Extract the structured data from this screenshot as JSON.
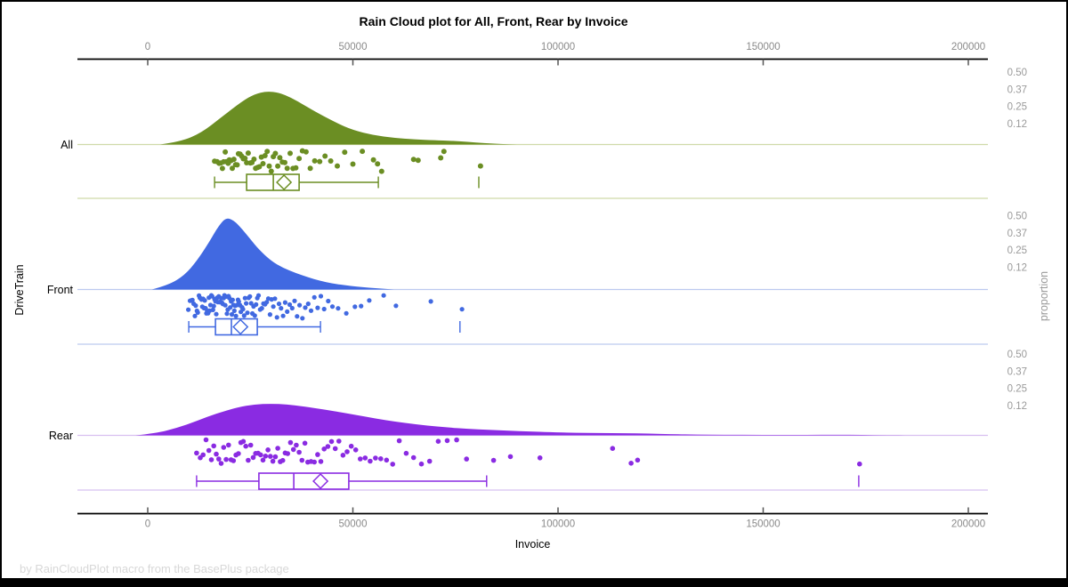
{
  "chart_data": {
    "type": "raincloud (half-violin density + jitter strip + box plot)",
    "title": "Rain Cloud plot for All, Front, Rear by Invoice",
    "xlabel": "Invoice",
    "ylabel": "DriveTrain",
    "y2label": "proportion",
    "footer": "by RainCloudPlot macro from the BasePlus package",
    "xlim": [
      0,
      204500
    ],
    "x_tick_values": [
      0,
      50000,
      100000,
      150000,
      200000
    ],
    "x_tick_labels": [
      "0",
      "50000",
      "100000",
      "150000",
      "200000"
    ],
    "proportion_tick_values": [
      0.5,
      0.37,
      0.25,
      0.12
    ],
    "proportion_tick_labels": [
      "0.50",
      "0.37",
      "0.25",
      "0.12"
    ],
    "categories": [
      "All",
      "Front",
      "Rear"
    ],
    "legend": "none",
    "grid": "off",
    "colors": {
      "axis_line": "#000000",
      "tick_mark": "#555555",
      "tick_label": "#8a8a8a",
      "proportion_label": "#9a9a9a",
      "category_label": "#000000",
      "footer": "#d8d8d8",
      "frame": "#000000"
    },
    "groups": [
      {
        "name": "All",
        "color": "#6B8E23",
        "light_color": "#cfdaa9",
        "density_peak_proportion": 0.37,
        "density_profile": [
          [
            3000,
            0
          ],
          [
            8000,
            0.02
          ],
          [
            13000,
            0.08
          ],
          [
            18000,
            0.19
          ],
          [
            23000,
            0.3
          ],
          [
            26000,
            0.35
          ],
          [
            29000,
            0.37
          ],
          [
            32000,
            0.36
          ],
          [
            35000,
            0.325
          ],
          [
            38000,
            0.275
          ],
          [
            42000,
            0.21
          ],
          [
            46000,
            0.15
          ],
          [
            50000,
            0.1
          ],
          [
            55000,
            0.065
          ],
          [
            60000,
            0.046
          ],
          [
            65000,
            0.036
          ],
          [
            70000,
            0.03
          ],
          [
            74000,
            0.026
          ],
          [
            78000,
            0.018
          ],
          [
            82000,
            0.01
          ],
          [
            86000,
            0.004
          ],
          [
            90000,
            0
          ]
        ],
        "box": {
          "whisker_low": 16300,
          "q1": 24100,
          "median": 30600,
          "q3": 36900,
          "whisker_high": 56200,
          "mean": 33200,
          "outliers": [
            80700
          ]
        },
        "points": [
          16300,
          16900,
          17400,
          17800,
          18200,
          18500,
          18900,
          19200,
          19600,
          19900,
          20300,
          20600,
          21000,
          21400,
          21800,
          22100,
          22500,
          22900,
          23300,
          23700,
          24100,
          24500,
          25000,
          25400,
          25900,
          26300,
          26800,
          27200,
          27700,
          28100,
          28600,
          29100,
          29600,
          30100,
          30600,
          31100,
          31700,
          32200,
          32800,
          33400,
          34000,
          34700,
          35400,
          36100,
          36900,
          37700,
          38600,
          39600,
          40700,
          41900,
          43200,
          44600,
          46200,
          48000,
          50000,
          52300,
          55000,
          56000,
          57000,
          64800,
          65900,
          71400,
          72200,
          81100
        ]
      },
      {
        "name": "Front",
        "color": "#4169E1",
        "light_color": "#bcc9ef",
        "density_peak_proportion": 0.5,
        "density_profile": [
          [
            1000,
            0
          ],
          [
            5000,
            0.03
          ],
          [
            9000,
            0.1
          ],
          [
            12000,
            0.2
          ],
          [
            15000,
            0.33
          ],
          [
            17000,
            0.43
          ],
          [
            19000,
            0.5
          ],
          [
            21000,
            0.48
          ],
          [
            23000,
            0.42
          ],
          [
            25000,
            0.35
          ],
          [
            27000,
            0.28
          ],
          [
            30000,
            0.2
          ],
          [
            33000,
            0.15
          ],
          [
            36000,
            0.115
          ],
          [
            39000,
            0.085
          ],
          [
            42000,
            0.06
          ],
          [
            45000,
            0.042
          ],
          [
            48000,
            0.03
          ],
          [
            51000,
            0.02
          ],
          [
            54000,
            0.012
          ],
          [
            57000,
            0.006
          ],
          [
            60000,
            0
          ]
        ],
        "box": {
          "whisker_low": 10000,
          "q1": 16500,
          "median": 20400,
          "q3": 26700,
          "whisker_high": 42100,
          "mean": 22600,
          "outliers": [
            76100
          ]
        },
        "points": [
          9900,
          10300,
          10600,
          10900,
          11200,
          11500,
          11700,
          12000,
          12200,
          12500,
          12700,
          12900,
          13100,
          13300,
          13500,
          13700,
          13900,
          14100,
          14300,
          14500,
          14700,
          14900,
          15100,
          15300,
          15500,
          15700,
          15900,
          16100,
          16300,
          16500,
          16700,
          16900,
          17100,
          17300,
          17500,
          17700,
          17900,
          18100,
          18300,
          18500,
          18700,
          18900,
          19100,
          19300,
          19500,
          19700,
          19900,
          20100,
          20300,
          20500,
          20700,
          20900,
          21100,
          21300,
          21500,
          21800,
          22000,
          22200,
          22500,
          22700,
          23000,
          23200,
          23500,
          23700,
          24000,
          24300,
          24600,
          24900,
          25200,
          25500,
          25800,
          26100,
          26400,
          26700,
          27000,
          27400,
          27800,
          28200,
          28600,
          29000,
          29400,
          29800,
          30200,
          30600,
          31000,
          31500,
          32000,
          32500,
          33000,
          33500,
          34000,
          34600,
          35200,
          35800,
          36400,
          37000,
          37700,
          38400,
          39100,
          39800,
          40600,
          41400,
          42200,
          43000,
          44000,
          45000,
          46400,
          48400,
          50500,
          52000,
          54000,
          57500,
          60500,
          69000,
          76600
        ]
      },
      {
        "name": "Rear",
        "color": "#8A2BE2",
        "light_color": "#d8c0f0",
        "density_peak_proportion": 0.22,
        "density_profile": [
          [
            -3000,
            0
          ],
          [
            2000,
            0.015
          ],
          [
            7000,
            0.05
          ],
          [
            12000,
            0.1
          ],
          [
            17000,
            0.155
          ],
          [
            22000,
            0.195
          ],
          [
            26000,
            0.215
          ],
          [
            30000,
            0.22
          ],
          [
            34000,
            0.215
          ],
          [
            38000,
            0.2
          ],
          [
            43000,
            0.18
          ],
          [
            48000,
            0.155
          ],
          [
            53000,
            0.13
          ],
          [
            58000,
            0.105
          ],
          [
            63000,
            0.085
          ],
          [
            68000,
            0.068
          ],
          [
            73000,
            0.055
          ],
          [
            78000,
            0.045
          ],
          [
            83000,
            0.038
          ],
          [
            88000,
            0.032
          ],
          [
            93000,
            0.027
          ],
          [
            98000,
            0.022
          ],
          [
            104000,
            0.018
          ],
          [
            110000,
            0.016
          ],
          [
            116000,
            0.015
          ],
          [
            122000,
            0.012
          ],
          [
            128000,
            0.008
          ],
          [
            134000,
            0.005
          ],
          [
            140000,
            0.004
          ],
          [
            150000,
            0.003
          ],
          [
            160000,
            0.003
          ],
          [
            168000,
            0.004
          ],
          [
            174000,
            0.003
          ],
          [
            180000,
            0.001
          ],
          [
            186000,
            0
          ]
        ],
        "box": {
          "whisker_low": 11900,
          "q1": 27100,
          "median": 35600,
          "q3": 49000,
          "whisker_high": 82600,
          "mean": 42100,
          "outliers": [
            173300
          ]
        },
        "points": [
          11900,
          12800,
          13500,
          14200,
          14900,
          15500,
          16100,
          16700,
          17300,
          17900,
          18500,
          19100,
          19700,
          20300,
          20900,
          21500,
          22100,
          22700,
          23300,
          23900,
          24500,
          25100,
          25700,
          26300,
          26900,
          27500,
          28100,
          28700,
          29300,
          29900,
          30500,
          31100,
          31700,
          32300,
          32900,
          33500,
          34100,
          34800,
          35500,
          36200,
          36900,
          37600,
          38300,
          39000,
          39800,
          40600,
          41400,
          42200,
          43000,
          43900,
          44800,
          45700,
          46600,
          47600,
          48600,
          49600,
          50700,
          51800,
          53000,
          54200,
          55500,
          56800,
          58200,
          59700,
          61300,
          63000,
          64800,
          66700,
          68700,
          70800,
          73000,
          75300,
          77700,
          84300,
          88400,
          95600,
          113300,
          117800,
          119400,
          173500
        ]
      }
    ]
  }
}
